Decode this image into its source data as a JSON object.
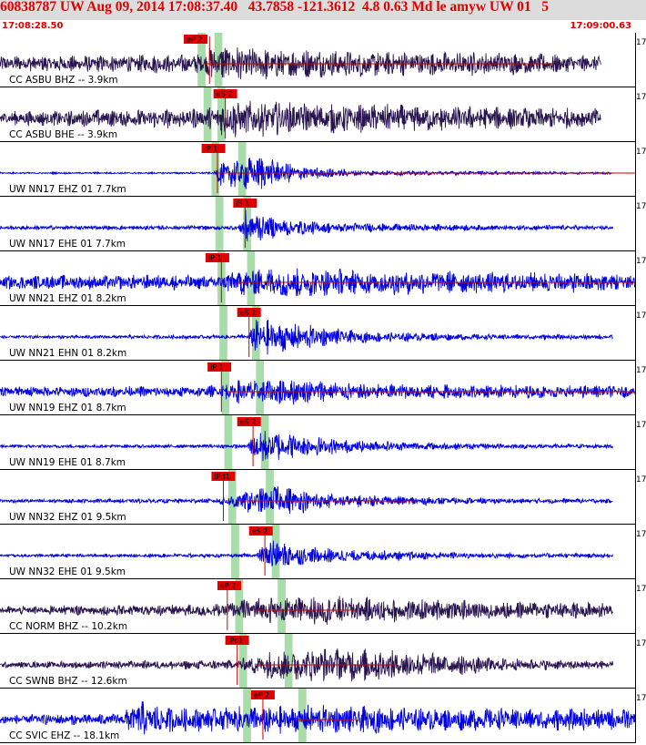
{
  "header": {
    "title": "60838787 UW Aug 09, 2014 17:08:37.40   43.7858 -121.3612  4.8 0.63 Md le amyw UW 01   5",
    "time_start": "17:08:28.50",
    "time_end": "17:09:00.63"
  },
  "chart_data": {
    "type": "line",
    "title": "60838787 UW Aug 09, 2014 17:08:37.40   43.7858 -121.3612  4.8 0.63 Md le amyw UW 01   5",
    "x_range": [
      "17:08:28.50",
      "17:09:00.63"
    ],
    "x_start_sec": 0,
    "x_end_sec": 32.13,
    "right_edge_label": "17",
    "colors": {
      "broadband": "#2a1450",
      "short_period": "#0000e0",
      "pick_box": "#e00000",
      "window": "#a8dca8",
      "coda": "#cc0000"
    },
    "traces": [
      {
        "label": "CC ASBU BHZ -- 3.9km",
        "color": "#2a1450",
        "pick": "eP 2",
        "pick_sec": 9.3,
        "onset_sec": 10.6,
        "env": [
          [
            0,
            0.4
          ],
          [
            10,
            0.5
          ],
          [
            11,
            1.0
          ],
          [
            14,
            0.8
          ],
          [
            20,
            0.65
          ],
          [
            26,
            0.6
          ],
          [
            30,
            0.4
          ],
          [
            32.13,
            0.3
          ]
        ],
        "trace_end_sec": 30.4,
        "coda": [
          [
            10.3,
            28
          ]
        ]
      },
      {
        "label": "CC ASBU BHE -- 3.9km",
        "color": "#2a1450",
        "pick": "eS 2",
        "pick_sec": 10.8,
        "onset_sec": 11.4,
        "env": [
          [
            0,
            0.35
          ],
          [
            10.5,
            0.55
          ],
          [
            11.5,
            1.0
          ],
          [
            15,
            0.8
          ],
          [
            22,
            0.65
          ],
          [
            28,
            0.55
          ],
          [
            32.13,
            0.45
          ]
        ],
        "trace_end_sec": 30.4
      },
      {
        "label": "UW NN17 EHZ 01 7.7km",
        "color": "#0000e0",
        "pick": "iP 1",
        "pick_sec": 10.2,
        "onset_sec": 11.0,
        "env": [
          [
            0,
            0.04
          ],
          [
            10.8,
            0.05
          ],
          [
            11.2,
            0.7
          ],
          [
            13,
            1.0
          ],
          [
            15,
            0.4
          ],
          [
            18,
            0.15
          ],
          [
            24,
            0.1
          ],
          [
            32.13,
            0.05
          ]
        ],
        "trace_end_sec": 31.0,
        "coda": [
          [
            11,
            32.13
          ]
        ]
      },
      {
        "label": "UW NN17 EHE 01 7.7km",
        "color": "#0000e0",
        "pick": "iS 1",
        "pick_sec": 11.8,
        "onset_sec": 12.4,
        "env": [
          [
            0,
            0.1
          ],
          [
            12,
            0.12
          ],
          [
            12.5,
            1.0
          ],
          [
            14,
            0.5
          ],
          [
            17,
            0.25
          ],
          [
            24,
            0.15
          ],
          [
            32.13,
            0.1
          ]
        ],
        "trace_end_sec": 31.0
      },
      {
        "label": "UW NN21 EHZ 01 8.2km",
        "color": "#0000e0",
        "pick": "iP 1",
        "pick_sec": 10.4,
        "onset_sec": 11.2,
        "env": [
          [
            0,
            0.35
          ],
          [
            11,
            0.4
          ],
          [
            12,
            0.7
          ],
          [
            14,
            0.8
          ],
          [
            18,
            0.65
          ],
          [
            26,
            0.55
          ],
          [
            32.13,
            0.5
          ]
        ],
        "trace_end_sec": 32.13,
        "coda": [
          [
            12,
            32.13
          ]
        ]
      },
      {
        "label": "UW NN21 EHN 01 8.2km",
        "color": "#0000e0",
        "pick": "eS 2",
        "pick_sec": 12.0,
        "onset_sec": 12.6,
        "env": [
          [
            0,
            0.08
          ],
          [
            12.5,
            0.1
          ],
          [
            13,
            1.0
          ],
          [
            15,
            0.7
          ],
          [
            18,
            0.3
          ],
          [
            24,
            0.15
          ],
          [
            32.13,
            0.1
          ]
        ],
        "trace_end_sec": 31.0
      },
      {
        "label": "UW NN19 EHZ 01 8.7km",
        "color": "#0000e0",
        "pick": "iP 1",
        "pick_sec": 10.5,
        "onset_sec": 11.2,
        "env": [
          [
            0,
            0.25
          ],
          [
            11,
            0.3
          ],
          [
            12,
            0.6
          ],
          [
            14,
            0.75
          ],
          [
            18,
            0.45
          ],
          [
            26,
            0.35
          ],
          [
            32.13,
            0.3
          ]
        ],
        "trace_end_sec": 32.13,
        "coda": [
          [
            11.5,
            32.13
          ]
        ]
      },
      {
        "label": "UW NN19 EHE 01 8.7km",
        "color": "#0000e0",
        "pick": "eS 2",
        "pick_sec": 12.0,
        "onset_sec": 12.8,
        "env": [
          [
            0,
            0.08
          ],
          [
            12.5,
            0.1
          ],
          [
            13,
            1.0
          ],
          [
            15,
            0.6
          ],
          [
            18,
            0.3
          ],
          [
            24,
            0.15
          ],
          [
            32.13,
            0.1
          ]
        ],
        "trace_end_sec": 31.0
      },
      {
        "label": "UW NN32 EHZ 01 9.5km",
        "color": "#0000e0",
        "pick": "iPd1",
        "pick_sec": 10.7,
        "onset_sec": 11.3,
        "env": [
          [
            0,
            0.1
          ],
          [
            11,
            0.12
          ],
          [
            12,
            0.5
          ],
          [
            14,
            0.8
          ],
          [
            17,
            0.35
          ],
          [
            24,
            0.15
          ],
          [
            32.13,
            0.1
          ]
        ],
        "trace_end_sec": 31.0,
        "coda": [
          [
            12,
            21
          ]
        ]
      },
      {
        "label": "UW NN32 EHE 01 9.5km",
        "color": "#0000e0",
        "pick": "eS 2",
        "pick_sec": 12.6,
        "onset_sec": 13.4,
        "env": [
          [
            0,
            0.08
          ],
          [
            13,
            0.1
          ],
          [
            13.6,
            1.0
          ],
          [
            15,
            0.5
          ],
          [
            18,
            0.3
          ],
          [
            24,
            0.15
          ],
          [
            32.13,
            0.1
          ]
        ],
        "trace_end_sec": 31.0
      },
      {
        "label": "CC NORM BHZ -- 10.2km",
        "color": "#2a1450",
        "pick": "eP 2",
        "pick_sec": 11.0,
        "onset_sec": 11.5,
        "env": [
          [
            0,
            0.2
          ],
          [
            11,
            0.35
          ],
          [
            13,
            0.65
          ],
          [
            16,
            0.75
          ],
          [
            20,
            0.6
          ],
          [
            26,
            0.45
          ],
          [
            32.13,
            0.4
          ]
        ],
        "trace_end_sec": 31.0,
        "coda": [
          [
            13,
            18
          ]
        ]
      },
      {
        "label": "CC SWNB BHZ -- 12.6km",
        "color": "#2a1450",
        "pick": "iPc1",
        "pick_sec": 11.4,
        "onset_sec": 12.0,
        "env": [
          [
            0,
            0.15
          ],
          [
            12,
            0.25
          ],
          [
            14,
            0.85
          ],
          [
            18,
            0.9
          ],
          [
            21,
            0.7
          ],
          [
            26,
            0.3
          ],
          [
            32.13,
            0.2
          ]
        ],
        "trace_end_sec": 31.0,
        "coda": [
          [
            13,
            20
          ]
        ]
      },
      {
        "label": "CC SVIC EHZ -- 18.1km",
        "color": "#0000e0",
        "pick": "eP 2",
        "pick_sec": 12.7,
        "onset_sec": 13.3,
        "env": [
          [
            0,
            0.25
          ],
          [
            6,
            0.3
          ],
          [
            7,
            0.95
          ],
          [
            9,
            0.6
          ],
          [
            13,
            0.7
          ],
          [
            16,
            0.75
          ],
          [
            22,
            0.6
          ],
          [
            32.13,
            0.55
          ]
        ],
        "trace_end_sec": 32.13,
        "coda": [
          [
            15,
            18
          ]
        ]
      }
    ],
    "windows": [
      [
        [
          10.0,
          10.4
        ],
        [
          10.85,
          11.25
        ]
      ],
      [
        [
          10.3,
          10.7
        ],
        [
          11.0,
          11.4
        ]
      ],
      [
        [
          10.7,
          11.1
        ],
        [
          12.05,
          12.45
        ]
      ],
      [
        [
          10.9,
          11.3
        ],
        [
          12.3,
          12.7
        ]
      ],
      [
        [
          11.0,
          11.4
        ],
        [
          12.5,
          12.9
        ]
      ],
      [
        [
          11.1,
          11.5
        ],
        [
          12.75,
          13.15
        ]
      ],
      [
        [
          11.2,
          11.6
        ],
        [
          12.95,
          13.35
        ]
      ],
      [
        [
          11.35,
          11.75
        ],
        [
          13.2,
          13.6
        ]
      ],
      [
        [
          11.55,
          11.95
        ],
        [
          13.45,
          13.85
        ]
      ],
      [
        [
          11.7,
          12.1
        ],
        [
          13.75,
          14.15
        ]
      ],
      [
        [
          11.9,
          12.3
        ],
        [
          14.05,
          14.45
        ]
      ],
      [
        [
          12.1,
          12.5
        ],
        [
          14.4,
          14.8
        ]
      ],
      [
        [
          12.3,
          12.7
        ],
        [
          15.1,
          15.5
        ]
      ]
    ]
  }
}
